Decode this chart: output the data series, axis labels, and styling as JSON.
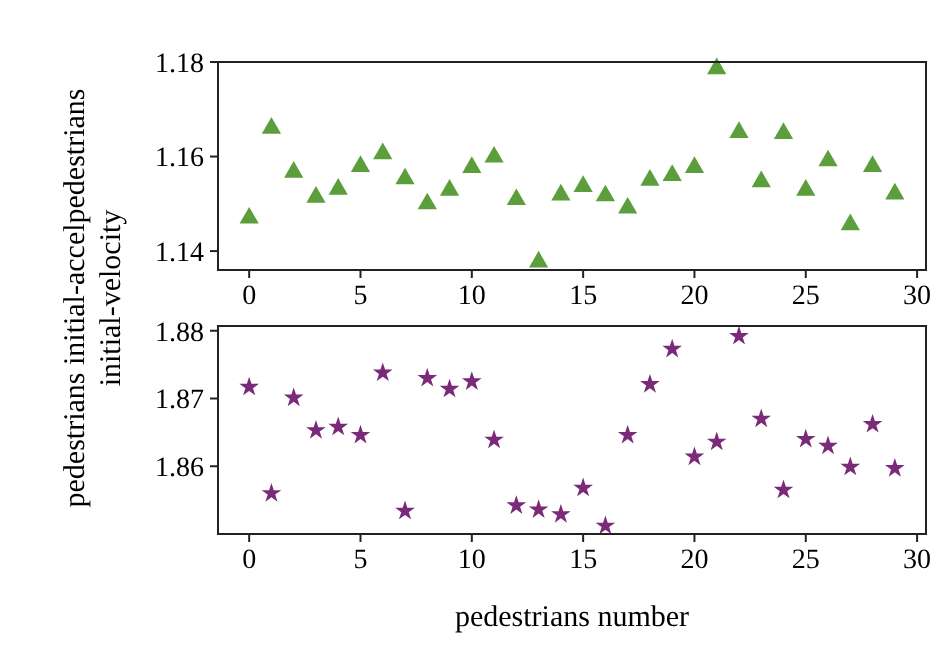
{
  "chart_data": [
    {
      "type": "scatter",
      "ylabel": "pedestrians initial-accelpedestrians\ninitial-velocity",
      "x": [
        0,
        1,
        2,
        3,
        4,
        5,
        6,
        7,
        8,
        9,
        10,
        11,
        12,
        13,
        14,
        15,
        16,
        17,
        18,
        19,
        20,
        21,
        22,
        23,
        24,
        25,
        26,
        27,
        28,
        29
      ],
      "marker": "triangle",
      "xlim": [
        -1.4,
        30.4
      ],
      "xticks": [
        0,
        5,
        10,
        15,
        20,
        25,
        30
      ],
      "ylim": [
        1.136,
        1.18
      ],
      "yticks": [
        1.14,
        1.16,
        1.18
      ],
      "series": [
        {
          "color": "#5c9e3c",
          "values": [
            1.147,
            1.166,
            1.1567,
            1.1514,
            1.1531,
            1.1579,
            1.1606,
            1.1553,
            1.15,
            1.1529,
            1.1577,
            1.1599,
            1.1509,
            1.1377,
            1.1519,
            1.1537,
            1.1517,
            1.1491,
            1.155,
            1.156,
            1.1577,
            1.1786,
            1.1651,
            1.1547,
            1.1649,
            1.1529,
            1.1591,
            1.1456,
            1.1579,
            1.1521
          ]
        }
      ]
    },
    {
      "type": "scatter",
      "xlabel": "pedestrians number",
      "x": [
        0,
        1,
        2,
        3,
        4,
        5,
        6,
        7,
        8,
        9,
        10,
        11,
        12,
        13,
        14,
        15,
        16,
        17,
        18,
        19,
        20,
        21,
        22,
        23,
        24,
        25,
        26,
        27,
        28,
        29
      ],
      "marker": "star",
      "xlim": [
        -1.4,
        30.4
      ],
      "xticks": [
        0,
        5,
        10,
        15,
        20,
        25,
        30
      ],
      "ylim": [
        1.85,
        1.8807
      ],
      "yticks": [
        1.86,
        1.87,
        1.88
      ],
      "series": [
        {
          "color": "#7a2a78",
          "values": [
            1.8717,
            1.856,
            1.8701,
            1.8653,
            1.8658,
            1.8646,
            1.8738,
            1.8534,
            1.873,
            1.8714,
            1.8725,
            1.8639,
            1.8542,
            1.8536,
            1.8529,
            1.8568,
            1.8512,
            1.8646,
            1.8721,
            1.8773,
            1.8614,
            1.8636,
            1.8792,
            1.867,
            1.8565,
            1.864,
            1.863,
            1.8599,
            1.8662,
            1.8597
          ]
        }
      ]
    }
  ]
}
